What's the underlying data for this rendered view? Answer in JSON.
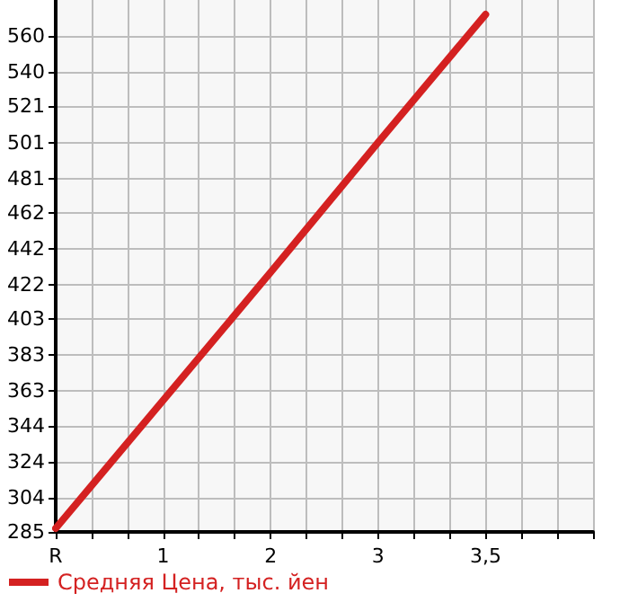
{
  "chart_data": {
    "type": "line",
    "categories": [
      "R",
      null,
      null,
      "1",
      null,
      null,
      "2",
      null,
      null,
      "3",
      null,
      null,
      "3,5",
      null,
      null,
      null
    ],
    "series": [
      {
        "name": "Средняя Цена, тыс. йен",
        "color": "#d42121",
        "values": [
          287,
          null,
          null,
          358,
          null,
          null,
          429,
          null,
          null,
          501,
          null,
          null,
          572,
          null,
          null,
          null
        ]
      }
    ],
    "ylim": [
      285,
      580
    ],
    "yticks": [
      285,
      304,
      324,
      344,
      363,
      383,
      403,
      422,
      442,
      462,
      481,
      501,
      521,
      540,
      560
    ],
    "grid": true,
    "legend": "bottom left",
    "marker": "none",
    "line_style": "solid"
  }
}
